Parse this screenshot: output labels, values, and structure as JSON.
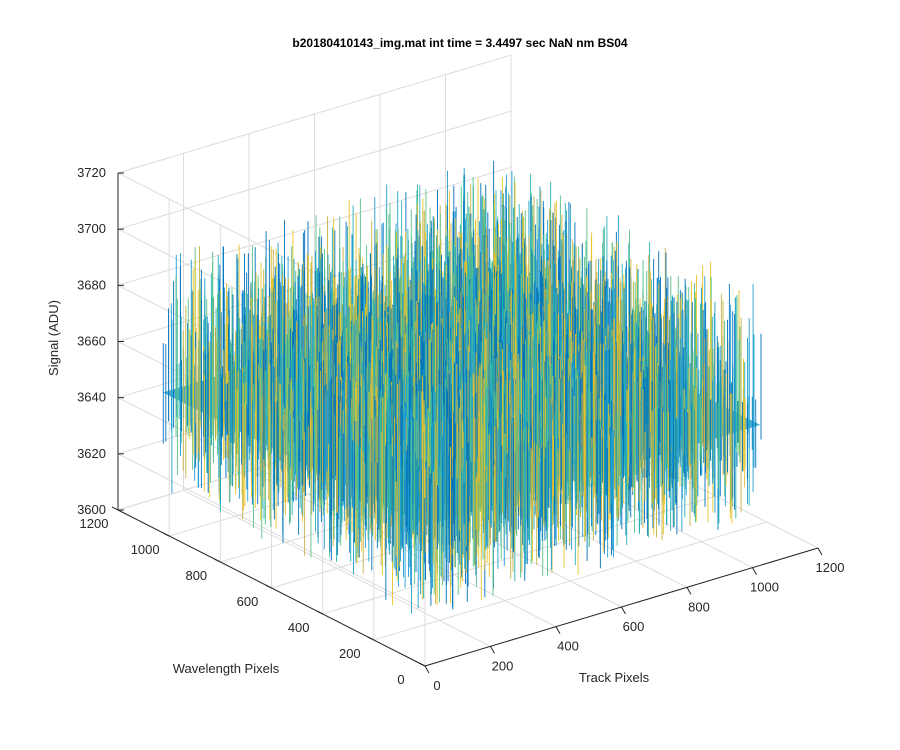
{
  "chart_data": {
    "type": "surface",
    "title": "b20180410143_img.mat int time = 3.4497 sec  NaN nm BS04",
    "xlabel": "Track Pixels",
    "ylabel": "Wavelength Pixels",
    "zlabel": "Signal (ADU)",
    "xlim": [
      0,
      1200
    ],
    "ylim": [
      0,
      1200
    ],
    "zlim": [
      3600,
      3720
    ],
    "x_ticks": [
      "0",
      "200",
      "400",
      "600",
      "800",
      "1000",
      "1200"
    ],
    "y_ticks": [
      "0",
      "200",
      "400",
      "600",
      "800",
      "1000",
      "1200"
    ],
    "z_ticks": [
      "3600",
      "3620",
      "3640",
      "3660",
      "3680",
      "3700",
      "3720"
    ],
    "surface_extent": {
      "x": [
        0,
        1024
      ],
      "y": [
        0,
        1024
      ]
    },
    "signal_mean": 3650,
    "signal_range": [
      3620,
      3700
    ],
    "colormap": [
      "#0072bd",
      "#1f9ed3",
      "#27b0b8",
      "#56c18a",
      "#c8b342",
      "#e8c42a"
    ],
    "grid": true,
    "view": "3d-default"
  }
}
